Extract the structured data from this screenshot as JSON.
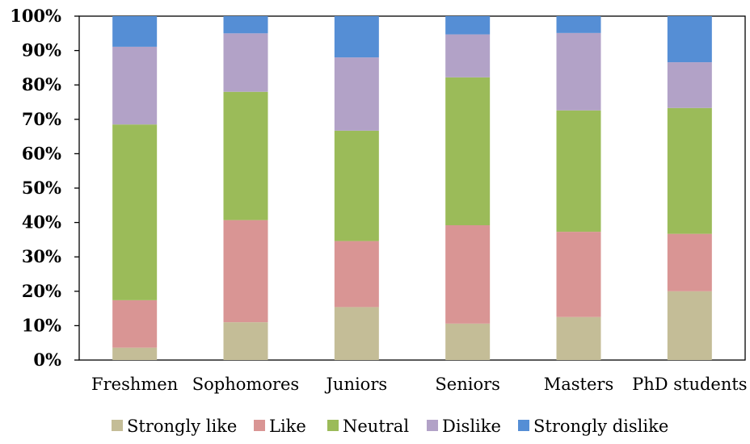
{
  "chart_data": {
    "type": "bar",
    "stacked": true,
    "percent": true,
    "categories": [
      "Freshmen",
      "Sophomores",
      "Juniors",
      "Seniors",
      "Masters",
      "PhD students"
    ],
    "series": [
      {
        "name": "Strongly like",
        "color": "#c4bd97",
        "values": [
          3.6,
          11.0,
          15.4,
          10.6,
          12.5,
          20.0
        ]
      },
      {
        "name": "Like",
        "color": "#d99594",
        "values": [
          13.8,
          29.7,
          19.2,
          28.6,
          24.8,
          16.7
        ]
      },
      {
        "name": "Neutral",
        "color": "#9bbb59",
        "values": [
          51.1,
          37.3,
          32.1,
          43.0,
          35.3,
          36.6
        ]
      },
      {
        "name": "Dislike",
        "color": "#b2a2c7",
        "values": [
          22.6,
          17.0,
          21.3,
          12.5,
          22.5,
          13.3
        ]
      },
      {
        "name": "Strongly dislike",
        "color": "#558ed5",
        "values": [
          8.9,
          5.0,
          12.0,
          5.3,
          4.9,
          13.4
        ]
      }
    ],
    "yticks": [
      "0%",
      "10%",
      "20%",
      "30%",
      "40%",
      "50%",
      "60%",
      "70%",
      "80%",
      "90%",
      "100%"
    ],
    "ylim": [
      0,
      100
    ],
    "grid": false,
    "legend": "bottom"
  }
}
